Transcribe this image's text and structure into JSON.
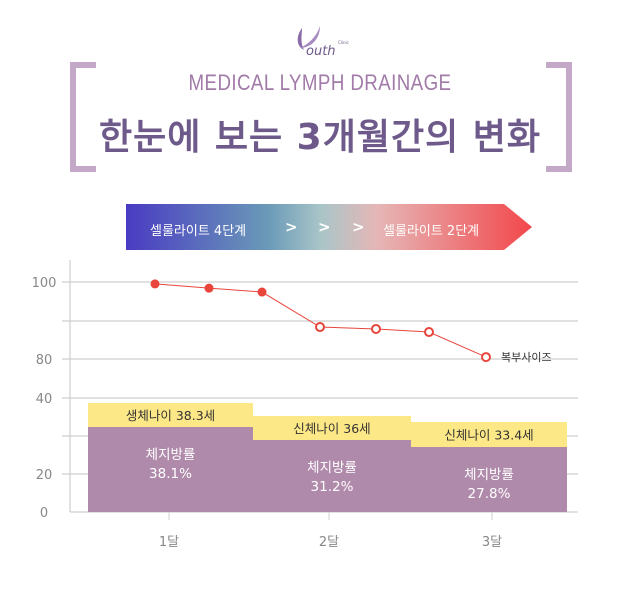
{
  "header": {
    "logo_text": "outh",
    "logo_sup": "Clinic",
    "subtitle": "MEDICAL LYMPH DRAINAGE",
    "title": "한눈에 보는 3개월간의 변화"
  },
  "banner": {
    "start_label": "셀룰라이트 4단계",
    "end_label": "셀룰라이트 2단계",
    "chevrons": [
      ">",
      ">",
      ">"
    ],
    "colors": [
      "#4a3bc2",
      "#6a9ab8",
      "#a9c5c8",
      "#e6b6b6",
      "#f2474b"
    ]
  },
  "chart_data": {
    "type": "line+bar",
    "y_ticks": [
      0,
      20,
      40,
      80,
      100
    ],
    "grid": true,
    "categories": [
      "1달",
      "2달",
      "3달"
    ],
    "line": {
      "name": "복부사이즈",
      "values": [
        99.5,
        98.4,
        97.4,
        88.3,
        87.8,
        87.0,
        80.5
      ],
      "filled_points": 3,
      "color": "#e8453c"
    },
    "bars": [
      {
        "top_label": "생체나이 38.3세",
        "label": "체지방률",
        "value_label": "38.1%"
      },
      {
        "top_label": "신체나이 36세",
        "label": "체지방률",
        "value_label": "31.2%"
      },
      {
        "top_label": "신체나이 33.4세",
        "label": "체지방률",
        "value_label": "27.8%"
      }
    ],
    "body_fat_values": [
      38.1,
      31.2,
      27.8
    ],
    "body_age_values": [
      38.3,
      36,
      33.4
    ],
    "bar_color": "#b08aab",
    "top_color": "#fde887"
  }
}
